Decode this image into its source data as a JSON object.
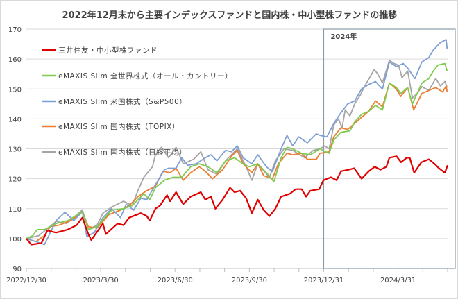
{
  "chart_data": {
    "type": "line",
    "title": "2022年12月末から主要インデックスファンドと国内株・中小型株ファンドの推移",
    "xlabel": "",
    "ylabel": "",
    "x_unit": "months since 2022/12/30",
    "xlim": [
      0,
      17
    ],
    "ylim": [
      90,
      170
    ],
    "yticks": [
      90,
      100,
      110,
      120,
      130,
      140,
      150,
      160,
      170
    ],
    "xticks": [
      {
        "t": 0,
        "label": "2022/12/30"
      },
      {
        "t": 3,
        "label": "2023/3/30"
      },
      {
        "t": 6,
        "label": "2023/6/30"
      },
      {
        "t": 9,
        "label": "2023/9/30"
      },
      {
        "t": 12,
        "label": "2023/12/31"
      },
      {
        "t": 15,
        "label": "2024/3/31"
      }
    ],
    "grid": true,
    "legend_position": "top-left",
    "highlight": {
      "label": "2024年",
      "from_t": 12
    },
    "series": [
      {
        "name": "三井住友・中小型株ファンド",
        "color": "#e00000",
        "width": 2.2,
        "points": [
          [
            0,
            100
          ],
          [
            0.2,
            98
          ],
          [
            0.61,
            98.5
          ],
          [
            0.85,
            102.7
          ],
          [
            1.2,
            102
          ],
          [
            1.67,
            103
          ],
          [
            2.03,
            104.5
          ],
          [
            2.26,
            107
          ],
          [
            2.5,
            101.5
          ],
          [
            2.62,
            99.5
          ],
          [
            3.09,
            105
          ],
          [
            3.21,
            101.5
          ],
          [
            3.68,
            105
          ],
          [
            3.92,
            104.5
          ],
          [
            4.15,
            107
          ],
          [
            4.62,
            108.5
          ],
          [
            4.86,
            107.5
          ],
          [
            4.98,
            106
          ],
          [
            5.21,
            110
          ],
          [
            5.39,
            111
          ],
          [
            5.68,
            114.5
          ],
          [
            5.8,
            112.5
          ],
          [
            6.04,
            115.5
          ],
          [
            6.33,
            111.5
          ],
          [
            6.63,
            114
          ],
          [
            7.04,
            115.5
          ],
          [
            7.22,
            113
          ],
          [
            7.45,
            114
          ],
          [
            7.63,
            110
          ],
          [
            7.92,
            113
          ],
          [
            8.22,
            117
          ],
          [
            8.4,
            115.5
          ],
          [
            8.63,
            116
          ],
          [
            8.87,
            113.5
          ],
          [
            9.1,
            108.5
          ],
          [
            9.34,
            113
          ],
          [
            9.58,
            109.5
          ],
          [
            9.81,
            107.5
          ],
          [
            10.05,
            110
          ],
          [
            10.28,
            114
          ],
          [
            10.64,
            115
          ],
          [
            10.87,
            116.5
          ],
          [
            11.11,
            116.5
          ],
          [
            11.29,
            114
          ],
          [
            11.46,
            116
          ],
          [
            11.82,
            116.5
          ],
          [
            11.99,
            119.5
          ],
          [
            12.29,
            120.5
          ],
          [
            12.52,
            119.5
          ],
          [
            12.7,
            122.5
          ],
          [
            13.0,
            123
          ],
          [
            13.23,
            123.5
          ],
          [
            13.53,
            120
          ],
          [
            13.82,
            122.5
          ],
          [
            14.06,
            124
          ],
          [
            14.29,
            123
          ],
          [
            14.53,
            124
          ],
          [
            14.65,
            127
          ],
          [
            14.94,
            127.5
          ],
          [
            15.12,
            125.5
          ],
          [
            15.35,
            127
          ],
          [
            15.47,
            127
          ],
          [
            15.65,
            122
          ],
          [
            15.94,
            125.5
          ],
          [
            16.24,
            126.5
          ],
          [
            16.47,
            125
          ],
          [
            16.65,
            123.5
          ],
          [
            16.89,
            122
          ],
          [
            17.0,
            124.5
          ]
        ]
      },
      {
        "name": "eMAXIS Slim 全世界株式（オール・カントリー）",
        "color": "#7ecb50",
        "width": 1.8,
        "points": [
          [
            0,
            100
          ],
          [
            0.26,
            101
          ],
          [
            0.44,
            103
          ],
          [
            0.73,
            103
          ],
          [
            1.2,
            105
          ],
          [
            1.67,
            106
          ],
          [
            2.26,
            109
          ],
          [
            2.5,
            103
          ],
          [
            2.85,
            104
          ],
          [
            3.44,
            109.5
          ],
          [
            3.92,
            110
          ],
          [
            4.27,
            111
          ],
          [
            4.74,
            115
          ],
          [
            4.98,
            113
          ],
          [
            5.21,
            117
          ],
          [
            5.57,
            119.5
          ],
          [
            5.92,
            120.5
          ],
          [
            6.27,
            120.5
          ],
          [
            6.63,
            124
          ],
          [
            6.98,
            125
          ],
          [
            7.33,
            124
          ],
          [
            7.69,
            122
          ],
          [
            8.04,
            126
          ],
          [
            8.4,
            127
          ],
          [
            8.75,
            125
          ],
          [
            8.99,
            124
          ],
          [
            9.34,
            125
          ],
          [
            9.69,
            122
          ],
          [
            9.99,
            119
          ],
          [
            10.28,
            127
          ],
          [
            10.52,
            130.5
          ],
          [
            10.75,
            130
          ],
          [
            11.11,
            128.5
          ],
          [
            11.46,
            128
          ],
          [
            11.85,
            130
          ],
          [
            12.22,
            128.5
          ],
          [
            12.41,
            133
          ],
          [
            12.69,
            135.5
          ],
          [
            13.06,
            136
          ],
          [
            13.25,
            139
          ],
          [
            13.53,
            141.5
          ],
          [
            13.81,
            142.5
          ],
          [
            14.09,
            144.5
          ],
          [
            14.37,
            143
          ],
          [
            14.65,
            152
          ],
          [
            14.93,
            150.5
          ],
          [
            15.11,
            148.5
          ],
          [
            15.39,
            150.5
          ],
          [
            15.58,
            145
          ],
          [
            15.96,
            152
          ],
          [
            16.24,
            153.5
          ],
          [
            16.42,
            156
          ],
          [
            16.61,
            158
          ],
          [
            16.89,
            158.5
          ],
          [
            16.98,
            156
          ]
        ]
      },
      {
        "name": "eMAXIS Slim 米国株式（S&P500）",
        "color": "#7f9fd4",
        "width": 1.8,
        "points": [
          [
            0,
            100
          ],
          [
            0.38,
            99
          ],
          [
            0.73,
            98
          ],
          [
            1.2,
            106
          ],
          [
            1.56,
            108.8
          ],
          [
            1.91,
            106
          ],
          [
            2.26,
            109
          ],
          [
            2.44,
            100.7
          ],
          [
            2.74,
            102
          ],
          [
            3.09,
            107
          ],
          [
            3.44,
            110
          ],
          [
            3.8,
            107
          ],
          [
            4.03,
            111.5
          ],
          [
            4.33,
            109.5
          ],
          [
            4.62,
            113.5
          ],
          [
            4.86,
            113
          ],
          [
            5.21,
            118
          ],
          [
            5.57,
            123
          ],
          [
            5.74,
            123.5
          ],
          [
            6.04,
            123.5
          ],
          [
            6.27,
            127
          ],
          [
            6.51,
            124.5
          ],
          [
            6.86,
            125
          ],
          [
            7.22,
            127
          ],
          [
            7.45,
            128
          ],
          [
            7.69,
            126
          ],
          [
            8.04,
            129.5
          ],
          [
            8.28,
            129
          ],
          [
            8.51,
            131
          ],
          [
            8.75,
            127
          ],
          [
            9.1,
            125
          ],
          [
            9.34,
            128
          ],
          [
            9.69,
            124
          ],
          [
            9.93,
            122.4
          ],
          [
            10.28,
            130
          ],
          [
            10.52,
            134.5
          ],
          [
            10.75,
            131
          ],
          [
            10.99,
            134
          ],
          [
            11.34,
            132
          ],
          [
            11.7,
            135
          ],
          [
            11.85,
            134.5
          ],
          [
            12.13,
            134
          ],
          [
            12.41,
            138.5
          ],
          [
            12.69,
            142
          ],
          [
            12.97,
            145
          ],
          [
            13.25,
            146
          ],
          [
            13.53,
            150
          ],
          [
            13.81,
            151.5
          ],
          [
            14.09,
            152.5
          ],
          [
            14.37,
            150
          ],
          [
            14.65,
            159
          ],
          [
            14.93,
            157.5
          ],
          [
            15.21,
            158.5
          ],
          [
            15.39,
            157
          ],
          [
            15.68,
            153.5
          ],
          [
            15.96,
            159
          ],
          [
            16.24,
            160.5
          ],
          [
            16.42,
            163
          ],
          [
            16.71,
            165.5
          ],
          [
            16.94,
            166.5
          ],
          [
            16.98,
            163.5
          ]
        ]
      },
      {
        "name": "eMAXIS Slim 国内株式（TOPIX）",
        "color": "#ed7d31",
        "width": 1.8,
        "points": [
          [
            0,
            100
          ],
          [
            0.38,
            99
          ],
          [
            0.73,
            101
          ],
          [
            0.97,
            104
          ],
          [
            1.32,
            104.5
          ],
          [
            1.79,
            106
          ],
          [
            2.26,
            109
          ],
          [
            2.5,
            104
          ],
          [
            2.85,
            103.5
          ],
          [
            3.33,
            108
          ],
          [
            3.8,
            109.5
          ],
          [
            4.15,
            111
          ],
          [
            4.5,
            114
          ],
          [
            4.86,
            116
          ],
          [
            5.21,
            117.5
          ],
          [
            5.51,
            122.5
          ],
          [
            5.8,
            122
          ],
          [
            6.04,
            123.5
          ],
          [
            6.33,
            119.5
          ],
          [
            6.63,
            122
          ],
          [
            6.98,
            124
          ],
          [
            7.22,
            122.5
          ],
          [
            7.51,
            120
          ],
          [
            7.92,
            123
          ],
          [
            8.28,
            127.5
          ],
          [
            8.51,
            129.5
          ],
          [
            8.75,
            125
          ],
          [
            9.1,
            122
          ],
          [
            9.34,
            125
          ],
          [
            9.58,
            121
          ],
          [
            9.93,
            120
          ],
          [
            10.17,
            125
          ],
          [
            10.52,
            128.5
          ],
          [
            10.75,
            128
          ],
          [
            11.11,
            128.5
          ],
          [
            11.34,
            126.5
          ],
          [
            11.7,
            126.5
          ],
          [
            11.85,
            128.5
          ],
          [
            12.22,
            129
          ],
          [
            12.41,
            134
          ],
          [
            12.69,
            137
          ],
          [
            12.97,
            136.5
          ],
          [
            13.25,
            138.5
          ],
          [
            13.53,
            140.5
          ],
          [
            13.81,
            142.5
          ],
          [
            14.09,
            146
          ],
          [
            14.37,
            144
          ],
          [
            14.65,
            152
          ],
          [
            14.93,
            150
          ],
          [
            15.11,
            147.5
          ],
          [
            15.39,
            150.5
          ],
          [
            15.63,
            143
          ],
          [
            15.96,
            148.5
          ],
          [
            16.24,
            149.5
          ],
          [
            16.52,
            150.5
          ],
          [
            16.8,
            149
          ],
          [
            16.94,
            151
          ],
          [
            16.98,
            149
          ]
        ]
      },
      {
        "name": "eMAXIS Slim 国内株式（日経平均）",
        "color": "#a5a5a5",
        "width": 1.8,
        "points": [
          [
            0,
            100
          ],
          [
            0.5,
            101
          ],
          [
            1.2,
            105.7
          ],
          [
            1.62,
            105
          ],
          [
            2.26,
            109.6
          ],
          [
            2.5,
            103
          ],
          [
            2.85,
            104.5
          ],
          [
            3.09,
            108.5
          ],
          [
            3.44,
            110.5
          ],
          [
            3.92,
            112.5
          ],
          [
            4.27,
            111
          ],
          [
            4.5,
            116
          ],
          [
            4.74,
            120.5
          ],
          [
            5.09,
            124
          ],
          [
            5.21,
            128
          ],
          [
            5.45,
            130.5
          ],
          [
            5.74,
            127
          ],
          [
            6.04,
            130.5
          ],
          [
            6.33,
            125
          ],
          [
            6.75,
            126.5
          ],
          [
            7.04,
            129
          ],
          [
            7.33,
            123
          ],
          [
            7.69,
            121.5
          ],
          [
            8.04,
            126
          ],
          [
            8.51,
            130
          ],
          [
            8.87,
            124
          ],
          [
            9.1,
            119.5
          ],
          [
            9.34,
            125
          ],
          [
            9.81,
            120.5
          ],
          [
            10.05,
            126
          ],
          [
            10.4,
            130
          ],
          [
            10.75,
            129.5
          ],
          [
            11.23,
            127
          ],
          [
            11.58,
            129.5
          ],
          [
            11.85,
            130
          ],
          [
            12.04,
            131
          ],
          [
            12.22,
            130
          ],
          [
            12.41,
            138
          ],
          [
            12.6,
            140
          ],
          [
            12.74,
            137
          ],
          [
            12.87,
            143
          ],
          [
            13.06,
            141
          ],
          [
            13.25,
            145
          ],
          [
            13.48,
            148
          ],
          [
            13.62,
            150.4
          ],
          [
            14.04,
            156.5
          ],
          [
            14.18,
            155
          ],
          [
            14.37,
            152
          ],
          [
            14.65,
            159.6
          ],
          [
            14.84,
            158.5
          ],
          [
            15.02,
            158
          ],
          [
            15.16,
            153.8
          ],
          [
            15.39,
            156
          ],
          [
            15.58,
            147
          ],
          [
            15.77,
            148.5
          ],
          [
            15.96,
            150.8
          ],
          [
            16.24,
            149.5
          ],
          [
            16.52,
            153.5
          ],
          [
            16.71,
            151
          ],
          [
            16.89,
            152.5
          ],
          [
            16.98,
            150.5
          ]
        ]
      }
    ]
  }
}
